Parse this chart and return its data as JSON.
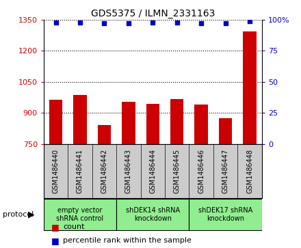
{
  "title": "GDS5375 / ILMN_2331163",
  "samples": [
    "GSM1486440",
    "GSM1486441",
    "GSM1486442",
    "GSM1486443",
    "GSM1486444",
    "GSM1486445",
    "GSM1486446",
    "GSM1486447",
    "GSM1486448"
  ],
  "counts": [
    965,
    985,
    840,
    955,
    945,
    968,
    940,
    875,
    1295
  ],
  "percentile_ranks": [
    98,
    98,
    97,
    97,
    98,
    98,
    97,
    97,
    99
  ],
  "ylim_left": [
    750,
    1350
  ],
  "ylim_right": [
    0,
    100
  ],
  "yticks_left": [
    750,
    900,
    1050,
    1200,
    1350
  ],
  "yticks_right": [
    0,
    25,
    50,
    75,
    100
  ],
  "bar_color": "#CC0000",
  "dot_color": "#0000CC",
  "protocols": [
    {
      "label": "empty vector\nshRNA control",
      "start": 0,
      "end": 3,
      "color": "#90EE90"
    },
    {
      "label": "shDEK14 shRNA\nknockdown",
      "start": 3,
      "end": 6,
      "color": "#90EE90"
    },
    {
      "label": "shDEK17 shRNA\nknockdown",
      "start": 6,
      "end": 9,
      "color": "#90EE90"
    }
  ],
  "legend_count_label": "count",
  "legend_percentile_label": "percentile rank within the sample",
  "protocol_label": "protocol",
  "bar_color_legend": "#CC0000",
  "dot_color_legend": "#0000CC",
  "bar_bottom": 750,
  "sample_box_color": "#CCCCCC",
  "fig_bg": "#FFFFFF"
}
